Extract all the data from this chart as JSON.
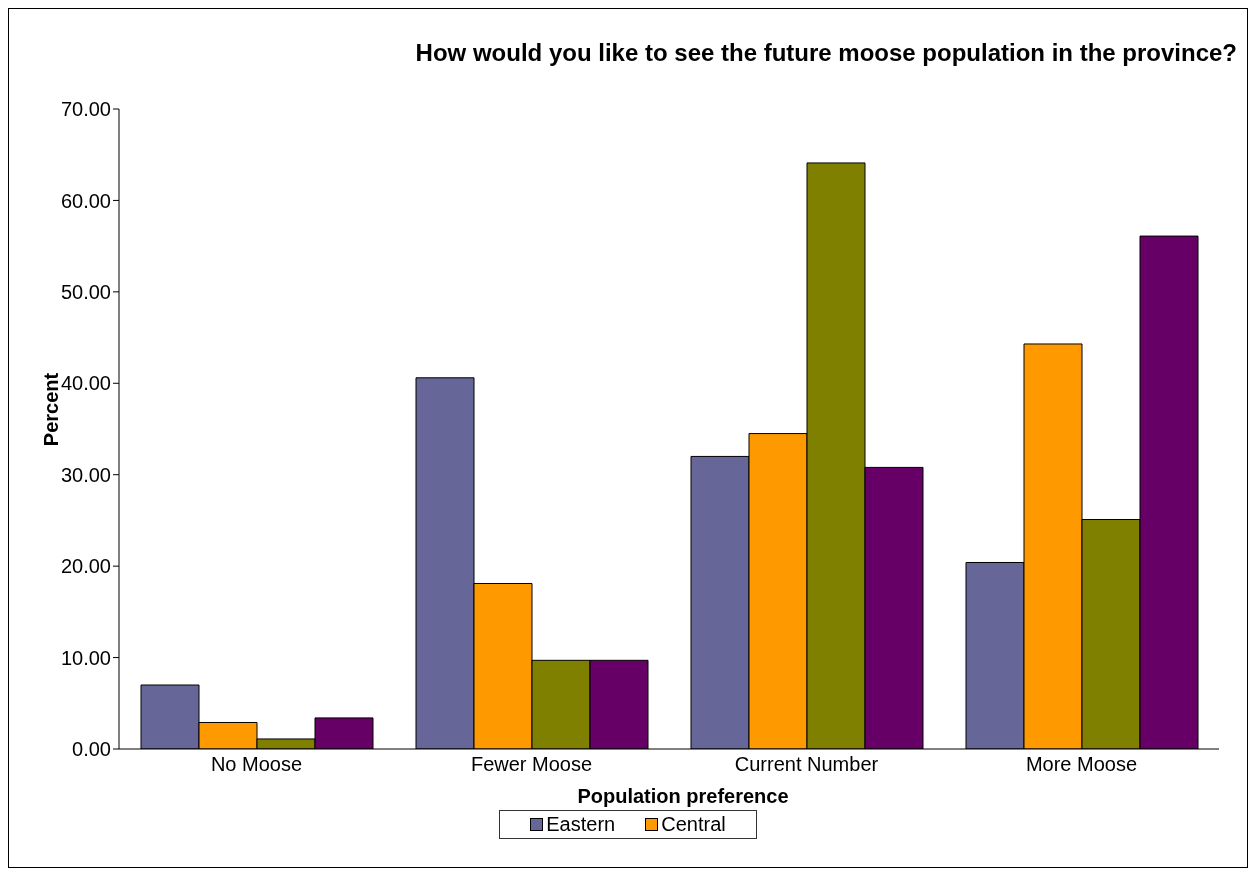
{
  "chart_data": {
    "type": "bar",
    "title": "How would you like to see the future moose population in the province?",
    "xlabel": "Population preference",
    "ylabel": "Percent",
    "categories": [
      "No Moose",
      "Fewer Moose",
      "Current Number",
      "More Moose"
    ],
    "series": [
      {
        "name": "Eastern",
        "color": "#666699",
        "values": [
          7.0,
          40.6,
          32.0,
          20.4
        ]
      },
      {
        "name": "Central",
        "color": "#ff9900",
        "values": [
          2.9,
          18.1,
          34.5,
          44.3
        ]
      },
      {
        "color": "#808000",
        "values": [
          1.1,
          9.7,
          64.1,
          25.1
        ]
      },
      {
        "color": "#660066",
        "values": [
          3.4,
          9.7,
          30.8,
          56.1
        ]
      }
    ],
    "ylim": [
      0,
      70
    ],
    "yticks": [
      {
        "value": 0,
        "label": "0.00"
      },
      {
        "value": 10,
        "label": "10.00"
      },
      {
        "value": 20,
        "label": "20.00"
      },
      {
        "value": 30,
        "label": "30.00"
      },
      {
        "value": 40,
        "label": "40.00"
      },
      {
        "value": 50,
        "label": "50.00"
      },
      {
        "value": 60,
        "label": "60.00"
      },
      {
        "value": 70,
        "label": "70.00"
      }
    ],
    "legend": "bottom"
  }
}
